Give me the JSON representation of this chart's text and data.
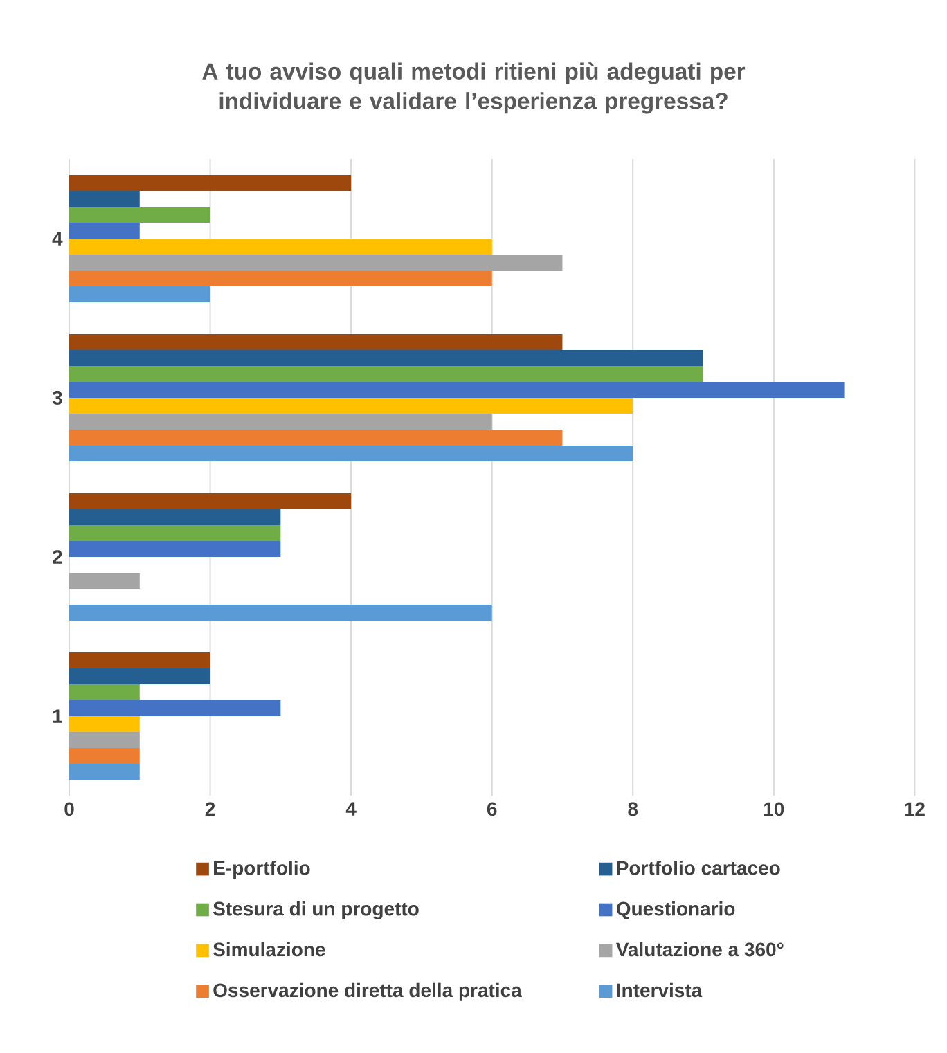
{
  "chart_data": {
    "type": "bar",
    "orientation": "horizontal",
    "title": "A tuo avviso quali metodi ritieni più adeguati per individuare e validare l’esperienza pregressa?",
    "categories": [
      "4",
      "3",
      "2",
      "1"
    ],
    "series": [
      {
        "name": "E-portfolio",
        "color": "#9e480e",
        "values": [
          4,
          7,
          4,
          2
        ]
      },
      {
        "name": "Portfolio cartaceo",
        "color": "#255e91",
        "values": [
          1,
          9,
          3,
          2
        ]
      },
      {
        "name": "Stesura di un progetto",
        "color": "#70ad47",
        "values": [
          2,
          9,
          3,
          1
        ]
      },
      {
        "name": "Questionario",
        "color": "#4472c4",
        "values": [
          1,
          11,
          3,
          3
        ]
      },
      {
        "name": "Simulazione",
        "color": "#ffc000",
        "values": [
          6,
          8,
          0,
          1
        ]
      },
      {
        "name": "Valutazione a 360°",
        "color": "#a5a5a5",
        "values": [
          7,
          6,
          1,
          1
        ]
      },
      {
        "name": "Osservazione diretta della pratica",
        "color": "#ed7d31",
        "values": [
          6,
          7,
          0,
          1
        ]
      },
      {
        "name": "Intervista",
        "color": "#5b9bd5",
        "values": [
          2,
          8,
          6,
          1
        ]
      }
    ],
    "xlim": [
      0,
      12
    ],
    "xticks": [
      0,
      2,
      4,
      6,
      8,
      10,
      12
    ],
    "grid": "x",
    "legend": "bottom"
  }
}
